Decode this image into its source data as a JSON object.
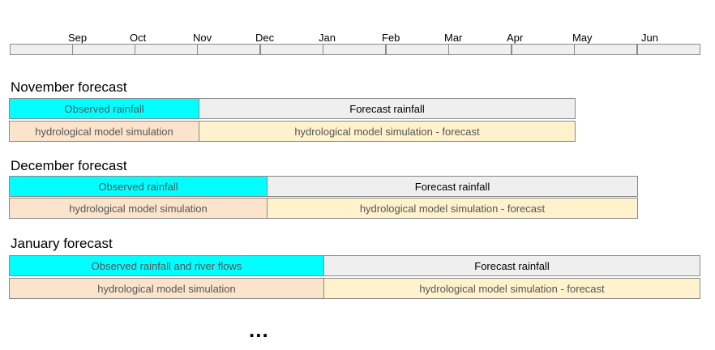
{
  "timeline": {
    "months": [
      "Sep",
      "Oct",
      "Nov",
      "Dec",
      "Jan",
      "Feb",
      "Mar",
      "Apr",
      "May",
      "Jun"
    ]
  },
  "forecasts": [
    {
      "title": "November forecast",
      "observed": "Observed rainfall",
      "forecast": "Forecast rainfall",
      "simulation": "hydrological model simulation",
      "simulation_forecast": "hydrological model simulation - forecast"
    },
    {
      "title": "December forecast",
      "observed": "Observed rainfall",
      "forecast": "Forecast rainfall",
      "simulation": "hydrological model simulation",
      "simulation_forecast": "hydrological model simulation - forecast"
    },
    {
      "title": "January forecast",
      "observed": "Observed rainfall and river flows",
      "forecast": "Forecast rainfall",
      "simulation": "hydrological model simulation",
      "simulation_forecast": "hydrological model simulation - forecast"
    }
  ],
  "ellipsis": "...",
  "colors": {
    "observed": "#00ffff",
    "forecast": "#efefef",
    "simulation": "#fce4cc",
    "simulation_forecast": "#fff2cc"
  }
}
